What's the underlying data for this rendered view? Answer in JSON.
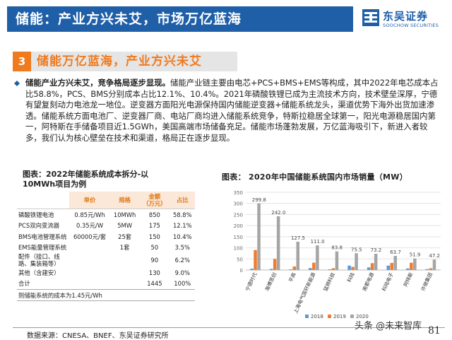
{
  "header": {
    "title": "储能：产业方兴未艾，市场万亿蓝海"
  },
  "logo": {
    "name": "东吴证券",
    "en": "SOOCHOW SECURITIES"
  },
  "section": {
    "number": "3",
    "title": "储能万亿蓝海，产业方兴未艾"
  },
  "paragraph": {
    "lead": "储能产业方兴未艾，竞争格局逐步显现。",
    "body": "储能产业链主要由电芯+PCS+BMS+EMS等构成，其中2022年电芯成本占比58.8%，PCS、BMS分别成本占比12.1%、10.4%。2021年磷酸铁锂已成为主流技术方向，技术壁垒深厚，宁德有望复刻动力电池龙一地位。逆变器方面阳光电源保持国内储能逆变器+储能系统龙头，渠道优势下海外出货加速渗透。储能系统方面电池厂、逆变器厂商、电站厂商均进入储能系统竞争，特斯拉稳居全球第一，阳光电源稳居国内第一，阿特斯在手储备项目近1.5GWh，美国高端市场储备充足。储能市场蓬勃发展，万亿蓝海吸引下，新进入者较多，我们认为核心壁垒在技术和渠道，格局正在逐步显现。"
  },
  "table": {
    "title": "图表：2022年储能系统成本拆分-以10MWh项目为例",
    "headers": [
      "",
      "单价",
      "规格",
      "金额\n（万元）",
      "占比"
    ],
    "rows": [
      [
        "磷酸铁锂电池",
        "0.85元/Wh",
        "10MWh",
        "850",
        "58.8%"
      ],
      [
        "PCS双向变流器",
        "0.35元/W",
        "5MW",
        "175",
        "12.1%"
      ],
      [
        "BMS电池管理系统",
        "60000元/套",
        "25套",
        "150",
        "10.4%"
      ],
      [
        "EMS能量管理系统",
        "",
        "1套",
        "50",
        "3.5%"
      ],
      [
        "配件（接口、线路、集装箱等）",
        "",
        "",
        "90",
        "6.2%"
      ],
      [
        "其他（含建安）",
        "",
        "",
        "130",
        "9.0%"
      ],
      [
        "合计",
        "",
        "",
        "1445",
        "100%"
      ]
    ],
    "note": "则储能系统的成本为1.45元/Wh"
  },
  "chart_title": "图表： 2020年中国储能系统国内市场销量（MW）",
  "chart_data": {
    "type": "bar",
    "categories": [
      "宁德时代",
      "海博思创",
      "平高",
      "上海电气国轩新能源",
      "猛狮科技",
      "科陆",
      "南都电源",
      "科陆电子",
      "阿特斯",
      "许继集团"
    ],
    "series": [
      {
        "name": "2018",
        "color": "#5b9bd5",
        "values": [
          6,
          5,
          3,
          9,
          3,
          20,
          12,
          20,
          7,
          4
        ]
      },
      {
        "name": "2019",
        "color": "#ed7d31",
        "values": [
          90,
          50,
          16,
          33,
          8,
          14,
          31,
          32,
          33,
          8
        ]
      },
      {
        "name": "2020",
        "color": "#a5a5a5",
        "values": [
          299.8,
          242.0,
          127.5,
          111.0,
          83.8,
          75.5,
          73.2,
          63.7,
          51.9,
          47.2
        ]
      }
    ],
    "labels": [
      "299.8",
      "242.0",
      "127.5",
      "111.0",
      "83.8",
      "75.5",
      "73.2",
      "63.7",
      "51.9",
      "47.2"
    ],
    "ylim": [
      0,
      350
    ],
    "yticks": [
      "0",
      "50",
      "100",
      "150",
      "200",
      "250",
      "300",
      "350"
    ],
    "legend": [
      "2018",
      "2019",
      "2020"
    ],
    "legend_position": "bottom-left"
  },
  "source": "数据来源：CNESA、BNEF、东吴证券研究所",
  "watermark": "头条 @未来智库",
  "page_number": "81"
}
